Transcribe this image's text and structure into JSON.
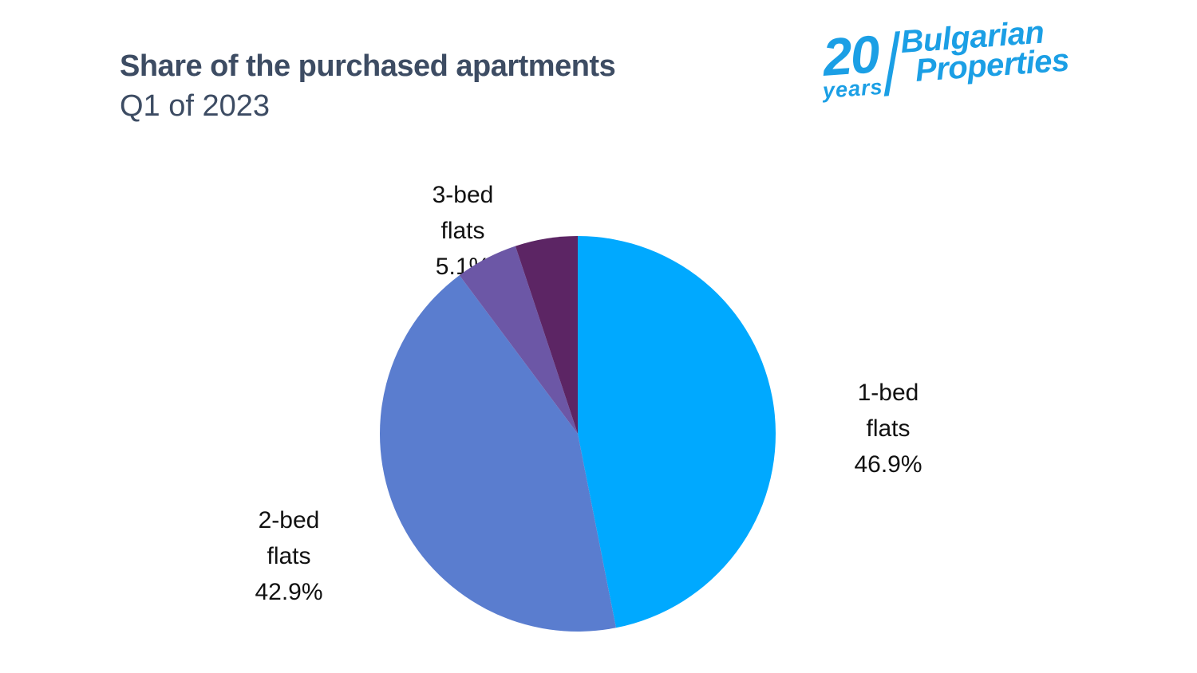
{
  "header": {
    "title": "Share of the purchased apartments",
    "subtitle": "Q1 of 2023"
  },
  "logo": {
    "years_number": "20",
    "years_word": "years",
    "brand_line1": "Bulgarian",
    "brand_line2": "Properties",
    "color": "#1b9fe5"
  },
  "chart_data": {
    "type": "pie",
    "title": "Share of the purchased apartments",
    "subtitle": "Q1 of 2023",
    "start_angle_deg": 0,
    "direction": "clockwise",
    "legend_position": "none",
    "slices": [
      {
        "label": "1-bed flats",
        "value": 46.9,
        "color": "#00a9ff",
        "label_lines": [
          "1-bed",
          "flats",
          "46.9%"
        ],
        "label_visible": true
      },
      {
        "label": "2-bed flats",
        "value": 42.9,
        "color": "#5a7dcf",
        "label_lines": [
          "2-bed",
          "flats",
          "42.9%"
        ],
        "label_visible": true
      },
      {
        "label": "3-bed flats",
        "value": 5.1,
        "color": "#6c57a6",
        "label_lines": [
          "3-bed",
          "flats",
          "5.1%"
        ],
        "label_visible": true
      },
      {
        "label": "",
        "value": 5.1,
        "color": "#5c2564",
        "label_lines": [],
        "label_visible": false
      }
    ]
  }
}
